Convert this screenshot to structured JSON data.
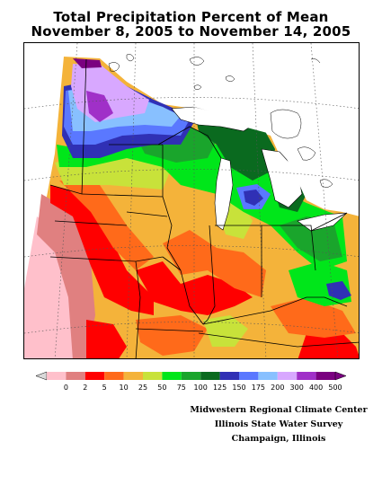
{
  "title_line1": "Total Precipitation Percent of Mean",
  "title_line2": "November 8, 2005 to November 14, 2005",
  "legend": {
    "labels": [
      "0",
      "2",
      "5",
      "10",
      "25",
      "50",
      "75",
      "100",
      "125",
      "150",
      "175",
      "200",
      "300",
      "400",
      "500"
    ],
    "colors": [
      "#ffc0cb",
      "#e08080",
      "#ff0000",
      "#ff6a1a",
      "#f4b33a",
      "#c8e23a",
      "#00e61a",
      "#1aa52c",
      "#0a6a1f",
      "#3030b5",
      "#5a78ff",
      "#88c0ff",
      "#d8a8ff",
      "#a030c8",
      "#7a0080"
    ]
  },
  "credits": {
    "line1": "Midwestern Regional Climate Center",
    "line2": "Illinois State Water Survey",
    "line3": "Champaign, Illinois"
  }
}
